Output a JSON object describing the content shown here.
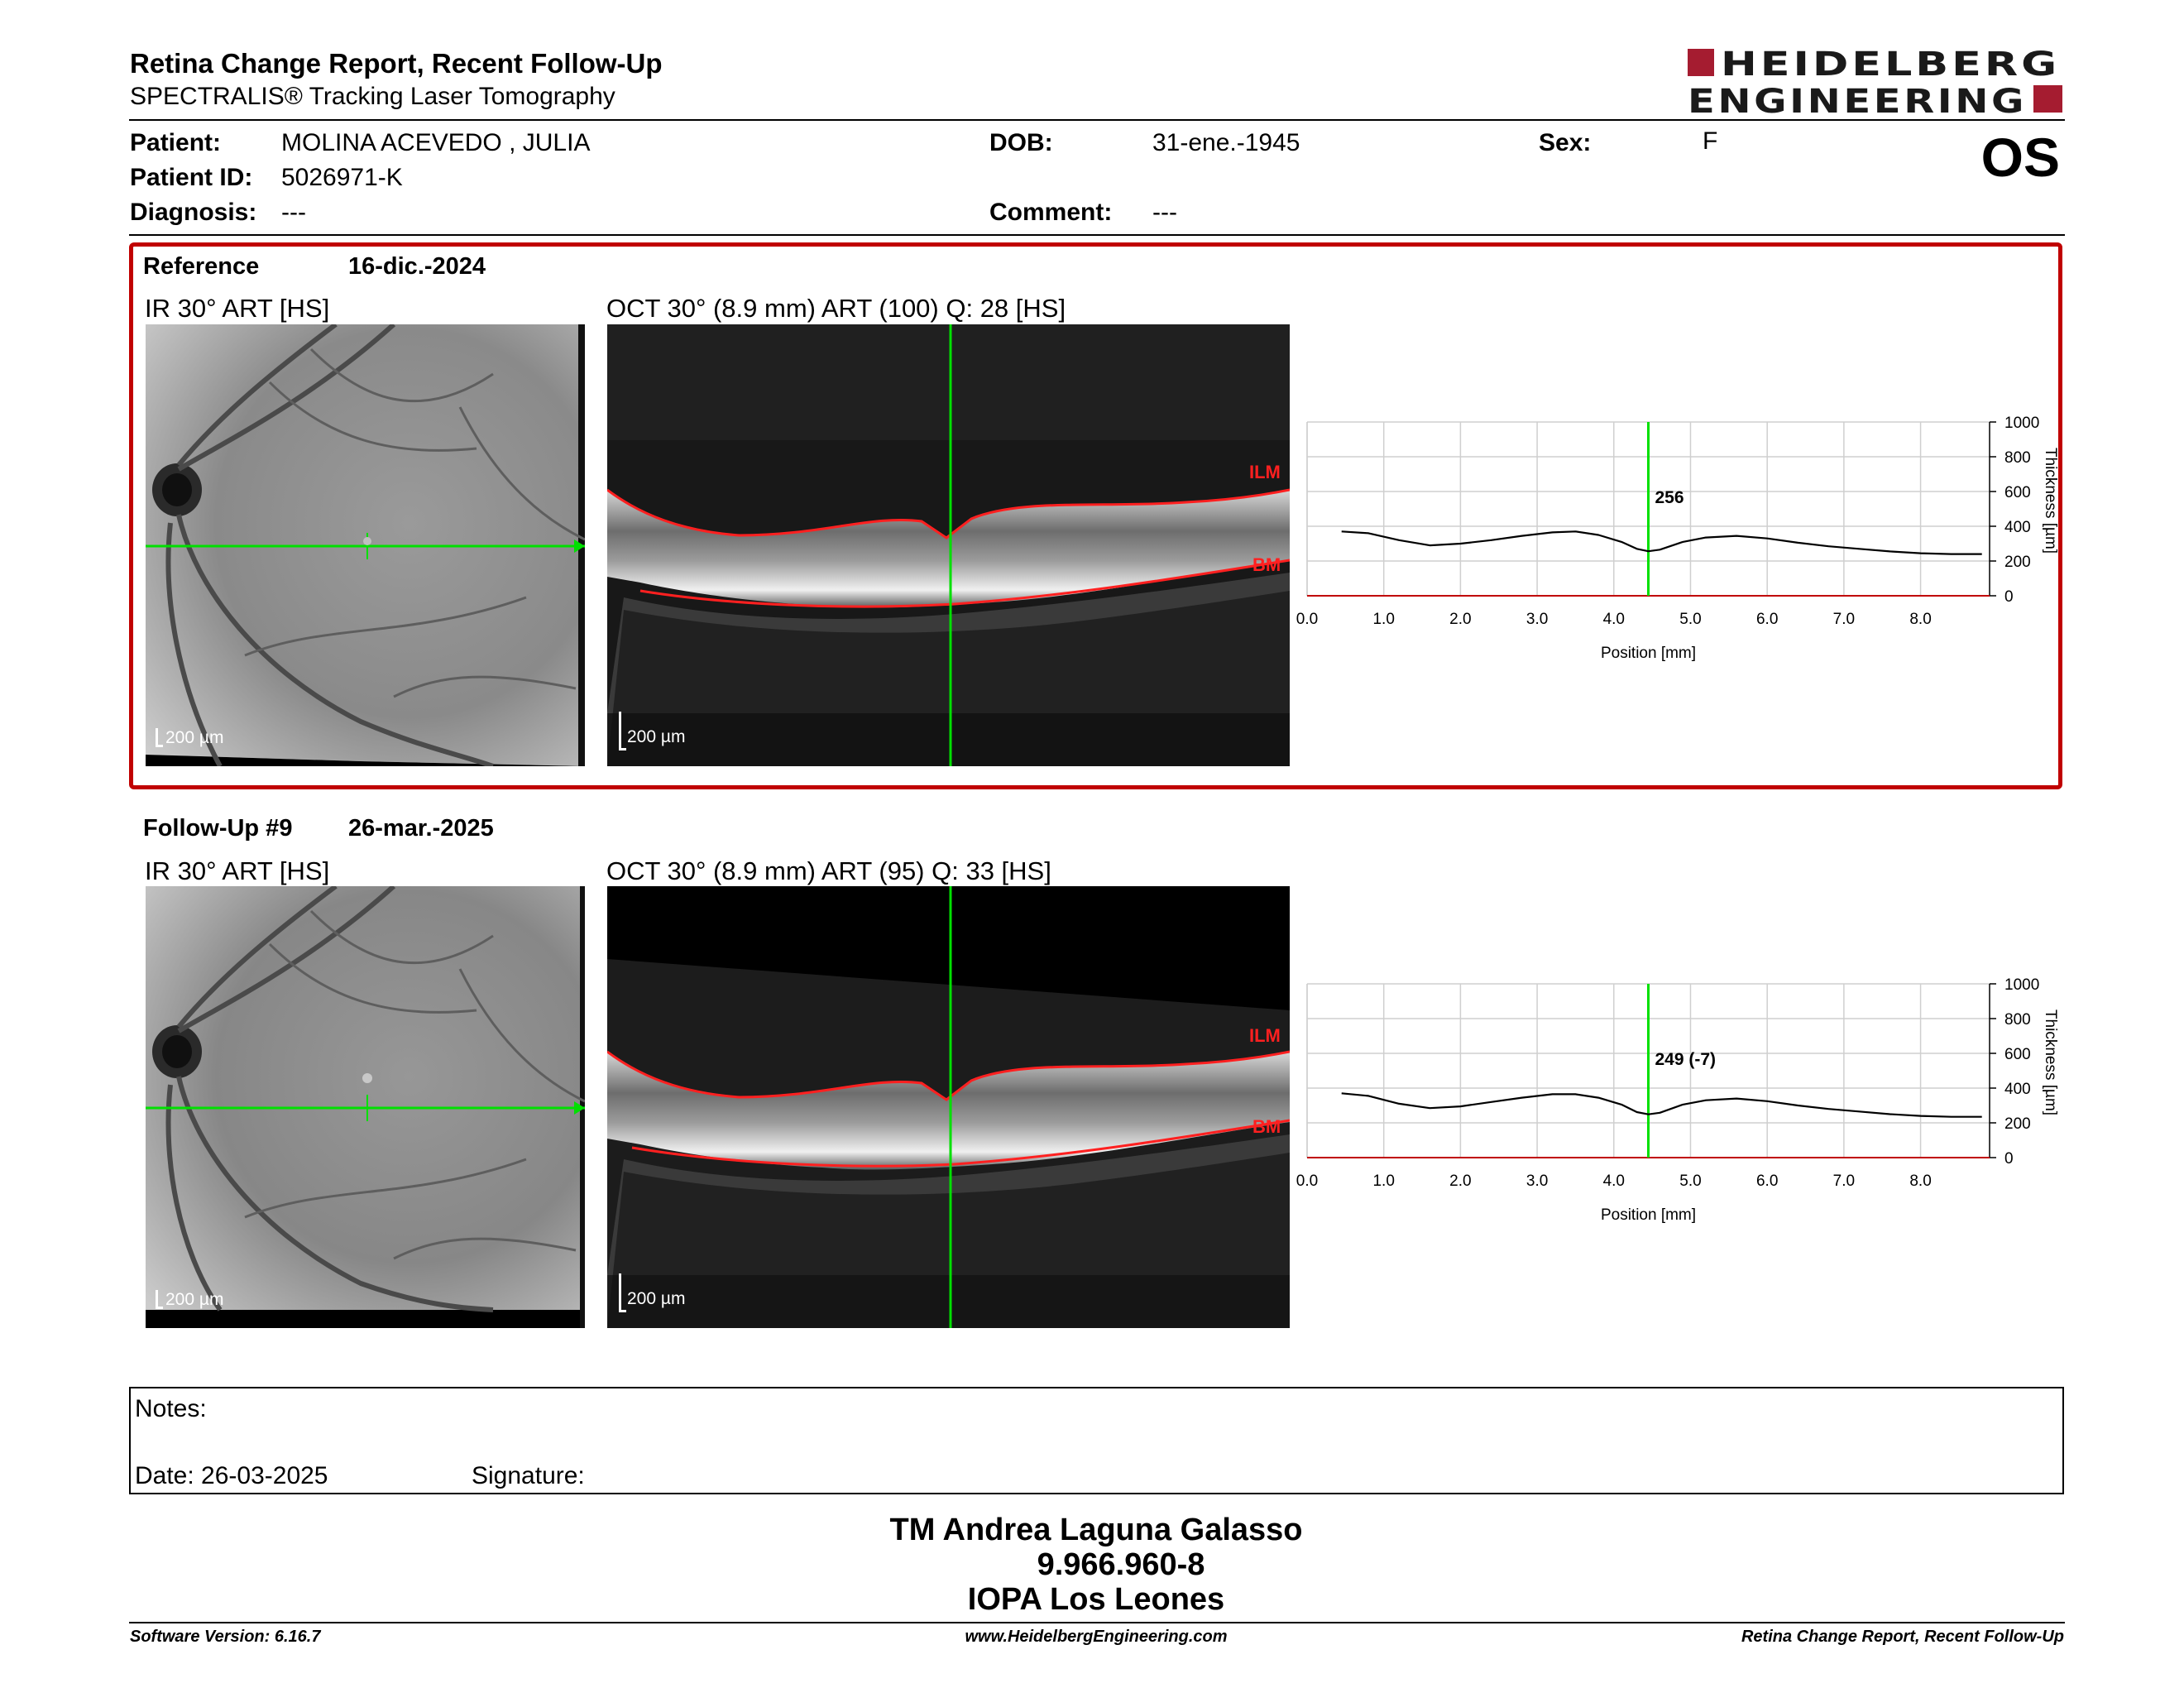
{
  "header": {
    "title": "Retina Change Report, Recent Follow-Up",
    "subtitle": "SPECTRALIS® Tracking Laser Tomography",
    "logo_line1": "HEIDELBERG",
    "logo_line2": "ENGINEERING",
    "eye": "OS"
  },
  "patient": {
    "patient_label": "Patient:",
    "patient_value": "MOLINA ACEVEDO , JULIA",
    "id_label": "Patient ID:",
    "id_value": "5026971-K",
    "diagnosis_label": "Diagnosis:",
    "diagnosis_value": "---",
    "dob_label": "DOB:",
    "dob_value": "31-ene.-1945",
    "comment_label": "Comment:",
    "comment_value": "---",
    "sex_label": "Sex:",
    "sex_value": "F"
  },
  "reference": {
    "label": "Reference",
    "date": "16-dic.-2024",
    "ir_title": "IR 30° ART [HS]",
    "oct_title": "OCT 30° (8.9 mm) ART (100) Q: 28 [HS]",
    "scale_ir": "200 µm",
    "scale_oct": "200 µm",
    "ilm": "ILM",
    "bm": "BM"
  },
  "followup": {
    "label": "Follow-Up #9",
    "date": "26-mar.-2025",
    "ir_title": "IR 30° ART [HS]",
    "oct_title": "OCT 30° (8.9 mm) ART (95) Q: 33 [HS]",
    "scale_ir": "200 µm",
    "scale_oct": "200 µm",
    "ilm": "ILM",
    "bm": "BM"
  },
  "chart_data": [
    {
      "type": "line",
      "xlabel": "Position [mm]",
      "ylabel": "Thickness [µm]",
      "xlim": [
        0.0,
        8.9
      ],
      "ylim": [
        0,
        1000
      ],
      "x_ticks": [
        "0.0",
        "1.0",
        "2.0",
        "3.0",
        "4.0",
        "5.0",
        "6.0",
        "7.0",
        "8.0"
      ],
      "y_ticks": [
        "0",
        "200",
        "400",
        "600",
        "800",
        "1000"
      ],
      "cursor_x": 4.45,
      "cursor_label": "256",
      "grid": true,
      "series": [
        {
          "x": [
            0.45,
            0.8,
            1.2,
            1.6,
            2.0,
            2.4,
            2.8,
            3.2,
            3.5,
            3.8,
            4.1,
            4.3,
            4.45,
            4.6,
            4.9,
            5.2,
            5.6,
            6.0,
            6.4,
            6.8,
            7.2,
            7.6,
            8.0,
            8.4,
            8.8
          ],
          "y": [
            370,
            360,
            320,
            290,
            300,
            320,
            345,
            365,
            370,
            350,
            310,
            270,
            256,
            265,
            310,
            335,
            345,
            330,
            305,
            285,
            270,
            255,
            245,
            240,
            240
          ]
        }
      ]
    },
    {
      "type": "line",
      "xlabel": "Position [mm]",
      "ylabel": "Thickness [µm]",
      "xlim": [
        0.0,
        8.9
      ],
      "ylim": [
        0,
        1000
      ],
      "x_ticks": [
        "0.0",
        "1.0",
        "2.0",
        "3.0",
        "4.0",
        "5.0",
        "6.0",
        "7.0",
        "8.0"
      ],
      "y_ticks": [
        "0",
        "200",
        "400",
        "600",
        "800",
        "1000"
      ],
      "cursor_x": 4.45,
      "cursor_label": "249 (-7)",
      "grid": true,
      "series": [
        {
          "x": [
            0.45,
            0.8,
            1.2,
            1.6,
            2.0,
            2.4,
            2.8,
            3.2,
            3.5,
            3.8,
            4.1,
            4.3,
            4.45,
            4.6,
            4.9,
            5.2,
            5.6,
            6.0,
            6.4,
            6.8,
            7.2,
            7.6,
            8.0,
            8.4,
            8.8
          ],
          "y": [
            370,
            355,
            310,
            285,
            295,
            320,
            345,
            365,
            365,
            345,
            305,
            262,
            249,
            258,
            305,
            330,
            340,
            325,
            300,
            280,
            265,
            250,
            240,
            235,
            235
          ]
        }
      ]
    }
  ],
  "notes": {
    "label": "Notes:",
    "date_text": "Date: 26-03-2025",
    "signature_label": "Signature:"
  },
  "signer": {
    "name": "TM Andrea Laguna Galasso",
    "id": "9.966.960-8",
    "org": "IOPA Los Leones"
  },
  "footer": {
    "left": "Software Version: 6.16.7",
    "center": "www.HeidelbergEngineering.com",
    "right": "Retina Change Report, Recent Follow-Up"
  },
  "colors": {
    "brand_red": "#a51c30",
    "box_red": "#c00000",
    "cursor_green": "#00e000",
    "layer_red": "#ff2020"
  }
}
